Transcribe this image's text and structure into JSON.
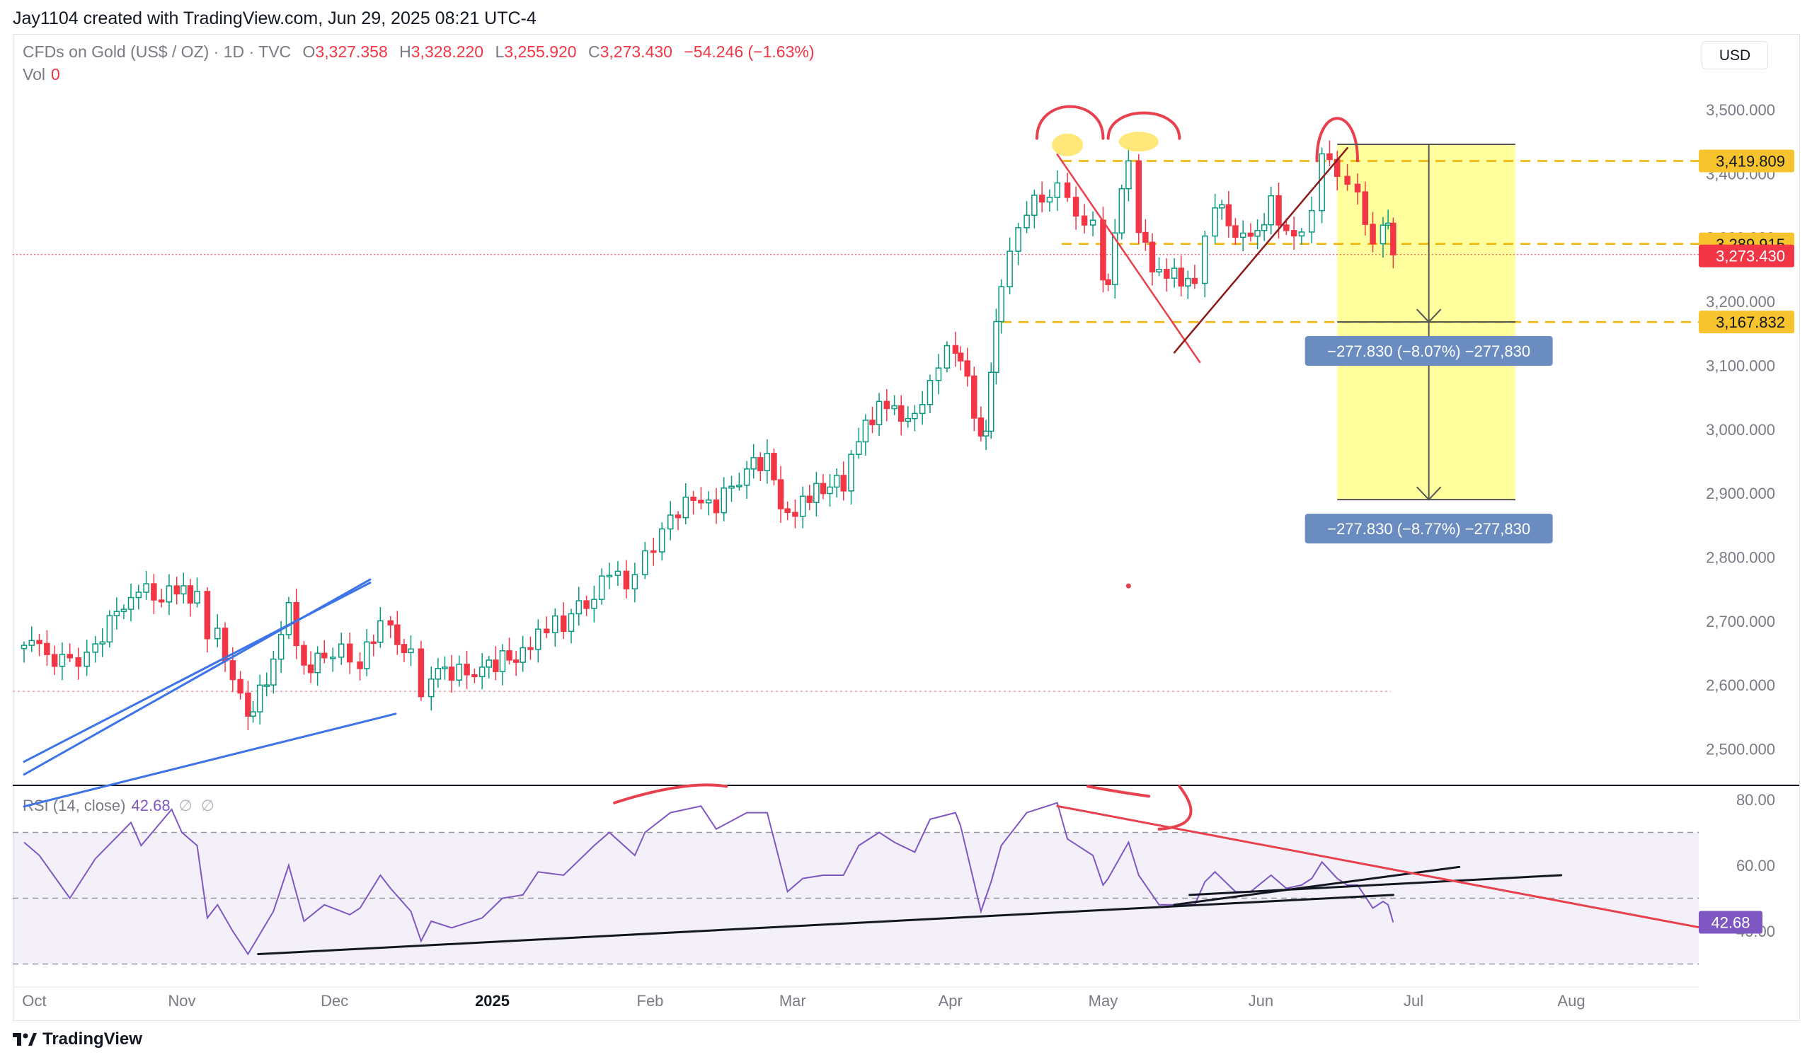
{
  "header": {
    "credit": "Jay1104 created with TradingView.com, Jun 29, 2025 08:21 UTC-4"
  },
  "legend": {
    "symbol": "CFDs on Gold (US$ / OZ) · 1D · TVC",
    "o_label": "O",
    "open": "3,327.358",
    "h_label": "H",
    "high": "3,328.220",
    "l_label": "L",
    "low": "3,255.920",
    "c_label": "C",
    "close": "3,273.430",
    "change": "−54.246 (−1.63%)",
    "vol_label": "Vol",
    "vol_value": "0"
  },
  "currency": "USD",
  "rsi_legend": {
    "label": "RSI (14, close)",
    "value": "42.68",
    "glyph1": "∅",
    "glyph2": "∅"
  },
  "footer": {
    "logo_text": "TradingView"
  },
  "colors": {
    "up": "#089981",
    "down": "#f23645",
    "rsi": "#7e57c2",
    "highlight": "#ffff8c",
    "label_yellow": "#f7c42d",
    "measure": "#6a8cc0",
    "trend_blue": "#2962ff"
  },
  "chart_data": [
    {
      "type": "candlestick",
      "title": "CFDs on Gold (US$ / OZ) · 1D · TVC",
      "x_tick_labels": [
        "Oct",
        "Nov",
        "Dec",
        "2025",
        "Feb",
        "Mar",
        "Apr",
        "May",
        "Jun",
        "Jul",
        "Aug"
      ],
      "y_tick_labels": [
        "3,500.000",
        "3,400.000",
        "3,300.000",
        "3,200.000",
        "3,100.000",
        "3,000.000",
        "2,900.000",
        "2,800.000",
        "2,700.000",
        "2,600.000",
        "2,500.000"
      ],
      "y_ticks": [
        3500,
        3400,
        3300,
        3200,
        3100,
        3000,
        2900,
        2800,
        2700,
        2600,
        2500
      ],
      "ylim": [
        2435,
        3580
      ],
      "grid": false,
      "price_labels": [
        {
          "text": "3,419.809",
          "value": 3419.809,
          "style": "yellow"
        },
        {
          "text": "3,289.915",
          "value": 3289.915,
          "style": "yellow"
        },
        {
          "text": "3,273.430",
          "value": 3273.43,
          "style": "red"
        },
        {
          "text": "3,167.832",
          "value": 3167.832,
          "style": "yellow"
        }
      ],
      "horizontal_levels": [
        3419.809,
        3289.915,
        3167.832,
        2590
      ],
      "measure_labels": [
        "−277.830 (−8.07%) −277,830",
        "−277.830 (−8.77%) −277,830"
      ],
      "measure": {
        "top": 3445.7,
        "mid": 3167.9,
        "bottom": 2890.0,
        "start": "2025-06-16",
        "end": "2025-07-21"
      },
      "daily_closes": [
        [
          "2024-10-01",
          2662
        ],
        [
          "2024-10-04",
          2653
        ],
        [
          "2024-10-10",
          2630
        ],
        [
          "2024-10-15",
          2663
        ],
        [
          "2024-10-22",
          2748
        ],
        [
          "2024-10-28",
          2743
        ],
        [
          "2024-10-31",
          2745
        ],
        [
          "2024-11-04",
          2736
        ],
        [
          "2024-11-06",
          2659
        ],
        [
          "2024-11-08",
          2685
        ],
        [
          "2024-11-11",
          2618
        ],
        [
          "2024-11-14",
          2565
        ],
        [
          "2024-11-15",
          2563
        ],
        [
          "2024-11-19",
          2632
        ],
        [
          "2024-11-22",
          2715
        ],
        [
          "2024-11-25",
          2625
        ],
        [
          "2024-11-29",
          2650
        ],
        [
          "2024-12-04",
          2650
        ],
        [
          "2024-12-06",
          2633
        ],
        [
          "2024-12-10",
          2694
        ],
        [
          "2024-12-12",
          2680
        ],
        [
          "2024-12-16",
          2648
        ],
        [
          "2024-12-18",
          2587
        ],
        [
          "2024-12-20",
          2623
        ],
        [
          "2024-12-24",
          2617
        ],
        [
          "2024-12-30",
          2624
        ],
        [
          "2025-01-03",
          2640
        ],
        [
          "2025-01-07",
          2648
        ],
        [
          "2025-01-10",
          2690
        ],
        [
          "2025-01-15",
          2697
        ],
        [
          "2025-01-21",
          2745
        ],
        [
          "2025-01-24",
          2770
        ],
        [
          "2025-01-29",
          2760
        ],
        [
          "2025-01-31",
          2798
        ],
        [
          "2025-02-05",
          2866
        ],
        [
          "2025-02-11",
          2897
        ],
        [
          "2025-02-14",
          2882
        ],
        [
          "2025-02-20",
          2939
        ],
        [
          "2025-02-24",
          2951
        ],
        [
          "2025-02-28",
          2857
        ],
        [
          "2025-03-03",
          2893
        ],
        [
          "2025-03-07",
          2910
        ],
        [
          "2025-03-11",
          2917
        ],
        [
          "2025-03-14",
          2984
        ],
        [
          "2025-03-18",
          3034
        ],
        [
          "2025-03-21",
          3023
        ],
        [
          "2025-03-25",
          3020
        ],
        [
          "2025-03-28",
          3085
        ],
        [
          "2025-04-02",
          3133
        ],
        [
          "2025-04-03",
          3113
        ],
        [
          "2025-04-07",
          2982
        ],
        [
          "2025-04-08",
          2983
        ],
        [
          "2025-04-09",
          3082
        ],
        [
          "2025-04-10",
          3175
        ],
        [
          "2025-04-11",
          3237
        ],
        [
          "2025-04-16",
          3343
        ],
        [
          "2025-04-22",
          3380
        ],
        [
          "2025-04-24",
          3349
        ],
        [
          "2025-04-29",
          3318
        ],
        [
          "2025-05-01",
          3238
        ],
        [
          "2025-05-02",
          3240
        ],
        [
          "2025-05-06",
          3430
        ],
        [
          "2025-05-08",
          3305
        ],
        [
          "2025-05-12",
          3237
        ],
        [
          "2025-05-15",
          3241
        ],
        [
          "2025-05-19",
          3230
        ],
        [
          "2025-05-21",
          3315
        ],
        [
          "2025-05-23",
          3358
        ],
        [
          "2025-05-27",
          3300
        ],
        [
          "2025-05-30",
          3290
        ],
        [
          "2025-06-03",
          3353
        ],
        [
          "2025-06-06",
          3310
        ],
        [
          "2025-06-09",
          3320
        ],
        [
          "2025-06-11",
          3355
        ],
        [
          "2025-06-13",
          3433
        ],
        [
          "2025-06-16",
          3385
        ],
        [
          "2025-06-18",
          3370
        ],
        [
          "2025-06-20",
          3368
        ],
        [
          "2025-06-23",
          3300
        ],
        [
          "2025-06-25",
          3333
        ],
        [
          "2025-06-26",
          3327
        ],
        [
          "2025-06-27",
          3273
        ]
      ]
    },
    {
      "type": "line",
      "title": "RSI (14, close)",
      "series": [
        {
          "name": "RSI (14, close)",
          "last": 42.68
        }
      ],
      "y_tick_labels": [
        "80.00",
        "60.00",
        "40.00"
      ],
      "y_ticks": [
        80,
        60,
        40
      ],
      "ylim": [
        32,
        84
      ],
      "bands": [
        70,
        50,
        30
      ],
      "last_value_label": "42.68",
      "values": [
        [
          "2024-10-01",
          67
        ],
        [
          "2024-10-04",
          63
        ],
        [
          "2024-10-10",
          50
        ],
        [
          "2024-10-15",
          62
        ],
        [
          "2024-10-22",
          73
        ],
        [
          "2024-10-24",
          66
        ],
        [
          "2024-10-30",
          77
        ],
        [
          "2024-11-01",
          70
        ],
        [
          "2024-11-04",
          66
        ],
        [
          "2024-11-06",
          44
        ],
        [
          "2024-11-08",
          48
        ],
        [
          "2024-11-11",
          40
        ],
        [
          "2024-11-14",
          33
        ],
        [
          "2024-11-19",
          46
        ],
        [
          "2024-11-22",
          60
        ],
        [
          "2024-11-25",
          43
        ],
        [
          "2024-11-29",
          48
        ],
        [
          "2024-12-04",
          45
        ],
        [
          "2024-12-06",
          47
        ],
        [
          "2024-12-10",
          57
        ],
        [
          "2024-12-12",
          53
        ],
        [
          "2024-12-16",
          46
        ],
        [
          "2024-12-18",
          37
        ],
        [
          "2024-12-20",
          43
        ],
        [
          "2024-12-24",
          41
        ],
        [
          "2024-12-30",
          44
        ],
        [
          "2025-01-03",
          50
        ],
        [
          "2025-01-07",
          51
        ],
        [
          "2025-01-10",
          58
        ],
        [
          "2025-01-15",
          57
        ],
        [
          "2025-01-21",
          66
        ],
        [
          "2025-01-24",
          70
        ],
        [
          "2025-01-29",
          63
        ],
        [
          "2025-01-31",
          70
        ],
        [
          "2025-02-05",
          76
        ],
        [
          "2025-02-11",
          78
        ],
        [
          "2025-02-14",
          71
        ],
        [
          "2025-02-20",
          76
        ],
        [
          "2025-02-24",
          76
        ],
        [
          "2025-02-28",
          52
        ],
        [
          "2025-03-03",
          56
        ],
        [
          "2025-03-07",
          57
        ],
        [
          "2025-03-11",
          57
        ],
        [
          "2025-03-14",
          66
        ],
        [
          "2025-03-18",
          70
        ],
        [
          "2025-03-21",
          67
        ],
        [
          "2025-03-25",
          64
        ],
        [
          "2025-03-28",
          74
        ],
        [
          "2025-04-02",
          76
        ],
        [
          "2025-04-03",
          72
        ],
        [
          "2025-04-07",
          46
        ],
        [
          "2025-04-09",
          55
        ],
        [
          "2025-04-11",
          66
        ],
        [
          "2025-04-16",
          76
        ],
        [
          "2025-04-22",
          79
        ],
        [
          "2025-04-24",
          68
        ],
        [
          "2025-04-29",
          63
        ],
        [
          "2025-05-01",
          54
        ],
        [
          "2025-05-02",
          56
        ],
        [
          "2025-05-06",
          67
        ],
        [
          "2025-05-08",
          57
        ],
        [
          "2025-05-12",
          48
        ],
        [
          "2025-05-15",
          48
        ],
        [
          "2025-05-19",
          48
        ],
        [
          "2025-05-21",
          55
        ],
        [
          "2025-05-23",
          58
        ],
        [
          "2025-05-27",
          52
        ],
        [
          "2025-05-30",
          52
        ],
        [
          "2025-06-03",
          57
        ],
        [
          "2025-06-06",
          53
        ],
        [
          "2025-06-09",
          54
        ],
        [
          "2025-06-11",
          56
        ],
        [
          "2025-06-13",
          61
        ],
        [
          "2025-06-16",
          56
        ],
        [
          "2025-06-18",
          54
        ],
        [
          "2025-06-20",
          54
        ],
        [
          "2025-06-23",
          47
        ],
        [
          "2025-06-25",
          49
        ],
        [
          "2025-06-26",
          48
        ],
        [
          "2025-06-27",
          42.68
        ]
      ]
    }
  ]
}
